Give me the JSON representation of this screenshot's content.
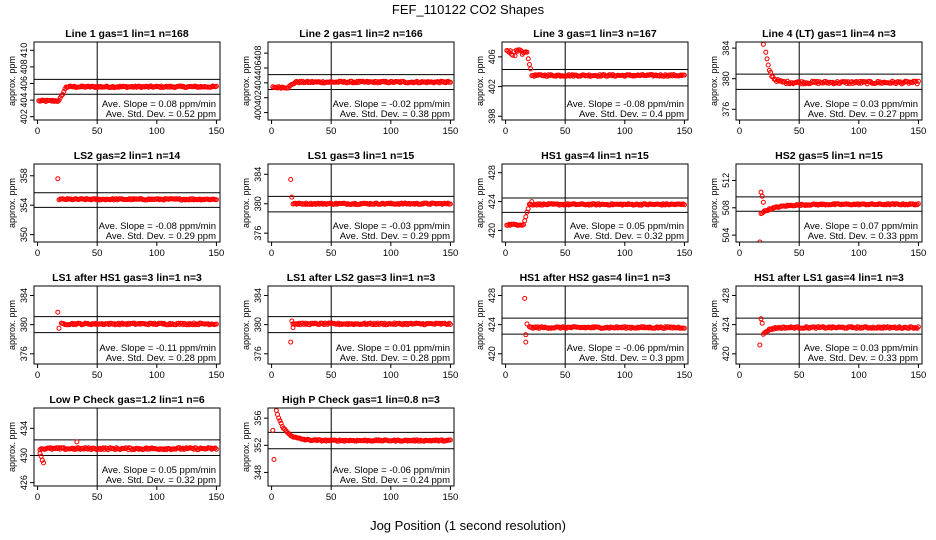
{
  "figure": {
    "title": "FEF_110122  CO2 Shapes",
    "xlabel": "Jog Position (1 second resolution)"
  },
  "colors": {
    "points": "#ff0000",
    "axes": "#000000",
    "background": "#ffffff"
  },
  "chart_data": [
    {
      "type": "scatter",
      "title": "Line 1 gas=1 lin=1 n=168",
      "ylabel": "approx. ppm",
      "xlim": [
        -3,
        153
      ],
      "ylim": [
        401.6,
        411.0
      ],
      "xticks": [
        0,
        50,
        100,
        150
      ],
      "yticks": [
        402,
        404,
        406,
        408,
        410
      ],
      "hlines": [
        404.7,
        406.5
      ],
      "vline": 50,
      "ave_slope": "0.08 ppm/min",
      "ave_std_dev": "0.52 ppm",
      "profile": "step",
      "x_start": 1,
      "step_x": [
        18,
        24
      ],
      "level_before": 403.9,
      "level_after": 405.6,
      "noise": 0.1,
      "outliers": []
    },
    {
      "type": "scatter",
      "title": "Line 2 gas=1 lin=2 n=166",
      "ylabel": "approx. ppm",
      "xlim": [
        -3,
        153
      ],
      "ylim": [
        399.0,
        409.5
      ],
      "xticks": [
        0,
        50,
        100,
        150
      ],
      "yticks": [
        400,
        402,
        404,
        406,
        408
      ],
      "hlines": [
        403.1,
        405.1
      ],
      "vline": 50,
      "ave_slope": "-0.02 ppm/min",
      "ave_std_dev": "0.38 ppm",
      "profile": "step",
      "x_start": 1,
      "step_x": [
        14,
        20
      ],
      "level_before": 403.4,
      "level_after": 404.1,
      "noise": 0.12,
      "outliers": []
    },
    {
      "type": "scatter",
      "title": "Line 3 gas=1 lin=3 n=167",
      "ylabel": "approx. ppm",
      "xlim": [
        -3,
        153
      ],
      "ylim": [
        397.5,
        408.0
      ],
      "xticks": [
        0,
        50,
        100,
        150
      ],
      "yticks": [
        398,
        402,
        406
      ],
      "hlines": [
        402.1,
        404.3
      ],
      "vline": 50,
      "ave_slope": "-0.08 ppm/min",
      "ave_std_dev": "0.4 ppm",
      "profile": "spike",
      "x_start": 1,
      "spike_start": 1,
      "spike_end": 18,
      "spike_level": 406.6,
      "level_after": 403.5,
      "noise": 0.12,
      "outliers": []
    },
    {
      "type": "scatter",
      "title": "Line 4 (LT) gas=1 lin=4 n=3",
      "ylabel": "approx. ppm",
      "xlim": [
        -3,
        153
      ],
      "ylim": [
        374.6,
        384.8
      ],
      "xticks": [
        0,
        50,
        100,
        150
      ],
      "yticks": [
        376,
        380,
        384
      ],
      "hlines": [
        378.6,
        380.6
      ],
      "vline": 50,
      "ave_slope": "0.03 ppm/min",
      "ave_std_dev": "0.27 ppm",
      "profile": "decay",
      "x_start": 22,
      "decay_from": 383.4,
      "decay_tau": 3.5,
      "level_after": 379.5,
      "noise": 0.18,
      "outliers": [
        [
          20,
          384.5
        ]
      ]
    },
    {
      "type": "scatter",
      "title": "LS2 gas=2 lin=1 n=14",
      "ylabel": "approx. ppm",
      "xlim": [
        -3,
        153
      ],
      "ylim": [
        349.0,
        359.6
      ],
      "xticks": [
        0,
        50,
        100,
        150
      ],
      "yticks": [
        350,
        354,
        358
      ],
      "hlines": [
        353.7,
        355.7
      ],
      "vline": 50,
      "ave_slope": "-0.08 ppm/min",
      "ave_std_dev": "0.29 ppm",
      "profile": "flat",
      "x_start": 18,
      "level_after": 354.8,
      "noise": 0.1,
      "outliers": [
        [
          17,
          357.6
        ]
      ]
    },
    {
      "type": "scatter",
      "title": "LS1 gas=3 lin=1 n=15",
      "ylabel": "approx. ppm",
      "xlim": [
        -3,
        153
      ],
      "ylim": [
        374.8,
        385.4
      ],
      "xticks": [
        0,
        50,
        100,
        150
      ],
      "yticks": [
        376,
        380,
        384
      ],
      "hlines": [
        378.9,
        381.0
      ],
      "vline": 50,
      "ave_slope": "-0.03 ppm/min",
      "ave_std_dev": "0.29 ppm",
      "profile": "flat",
      "x_start": 18,
      "level_after": 380.0,
      "noise": 0.1,
      "outliers": [
        [
          16,
          383.3
        ],
        [
          17,
          380.9
        ]
      ]
    },
    {
      "type": "scatter",
      "title": "HS1 gas=4 lin=1 n=15",
      "ylabel": "approx. ppm",
      "xlim": [
        -3,
        153
      ],
      "ylim": [
        418.4,
        429.2
      ],
      "xticks": [
        0,
        50,
        100,
        150
      ],
      "yticks": [
        420,
        424,
        428
      ],
      "hlines": [
        422.5,
        424.5
      ],
      "vline": 50,
      "ave_slope": "0.05 ppm/min",
      "ave_std_dev": "0.32 ppm",
      "profile": "step",
      "x_start": 1,
      "step_x": [
        15,
        20
      ],
      "level_before": 420.8,
      "level_after": 423.6,
      "noise": 0.1,
      "outliers": [
        [
          22,
          424.0
        ]
      ]
    },
    {
      "type": "scatter",
      "title": "HS2 gas=5 lin=1 n=15",
      "ylabel": "approx. ppm",
      "xlim": [
        -3,
        153
      ],
      "ylim": [
        503.0,
        514.4
      ],
      "xticks": [
        0,
        50,
        100,
        150
      ],
      "yticks": [
        504,
        508,
        512
      ],
      "hlines": [
        507.5,
        509.6
      ],
      "vline": 50,
      "ave_slope": "0.07 ppm/min",
      "ave_std_dev": "0.33 ppm",
      "profile": "rise",
      "x_start": 18,
      "rise_from": 507.2,
      "rise_tau": 12,
      "level_after": 508.5,
      "noise": 0.1,
      "outliers": [
        [
          18,
          510.3
        ],
        [
          19,
          509.7
        ],
        [
          20,
          508.8
        ],
        [
          17,
          503.0
        ]
      ]
    },
    {
      "type": "scatter",
      "title": "LS1 after HS1 gas=3 lin=1 n=3",
      "ylabel": "approx. ppm",
      "xlim": [
        -3,
        153
      ],
      "ylim": [
        374.6,
        385.3
      ],
      "xticks": [
        0,
        50,
        100,
        150
      ],
      "yticks": [
        376,
        380,
        384
      ],
      "hlines": [
        378.9,
        381.1
      ],
      "vline": 50,
      "ave_slope": "-0.11 ppm/min",
      "ave_std_dev": "0.28 ppm",
      "profile": "flat",
      "x_start": 20,
      "level_after": 380.1,
      "noise": 0.12,
      "outliers": [
        [
          17,
          381.7
        ],
        [
          18,
          379.5
        ]
      ]
    },
    {
      "type": "scatter",
      "title": "LS1 after LS2 gas=3 lin=1 n=3",
      "ylabel": "approx. ppm",
      "xlim": [
        -3,
        153
      ],
      "ylim": [
        374.6,
        385.3
      ],
      "xticks": [
        0,
        50,
        100,
        150
      ],
      "yticks": [
        376,
        380,
        384
      ],
      "hlines": [
        378.9,
        381.1
      ],
      "vline": 50,
      "ave_slope": "0.01 ppm/min",
      "ave_std_dev": "0.28 ppm",
      "profile": "flat",
      "x_start": 18,
      "level_after": 380.1,
      "noise": 0.12,
      "outliers": [
        [
          16,
          377.6
        ],
        [
          17,
          380.5
        ],
        [
          18,
          379.6
        ]
      ]
    },
    {
      "type": "scatter",
      "title": "HS1 after HS2 gas=4 lin=1 n=3",
      "ylabel": "approx. ppm",
      "xlim": [
        -3,
        153
      ],
      "ylim": [
        418.6,
        429.3
      ],
      "xticks": [
        0,
        50,
        100,
        150
      ],
      "yticks": [
        420,
        424,
        428
      ],
      "hlines": [
        422.7,
        424.9
      ],
      "vline": 50,
      "ave_slope": "-0.06 ppm/min",
      "ave_std_dev": "0.3 ppm",
      "profile": "flat",
      "x_start": 20,
      "level_after": 423.6,
      "noise": 0.12,
      "outliers": [
        [
          16,
          427.6
        ],
        [
          17,
          421.6
        ],
        [
          17,
          422.6
        ],
        [
          18,
          424.1
        ]
      ]
    },
    {
      "type": "scatter",
      "title": "HS1 after LS1 gas=4 lin=1 n=3",
      "ylabel": "approx. ppm",
      "xlim": [
        -3,
        153
      ],
      "ylim": [
        418.6,
        429.3
      ],
      "xticks": [
        0,
        50,
        100,
        150
      ],
      "yticks": [
        420,
        424,
        428
      ],
      "hlines": [
        422.7,
        424.9
      ],
      "vline": 50,
      "ave_slope": "0.03 ppm/min",
      "ave_std_dev": "0.33 ppm",
      "profile": "rise",
      "x_start": 20,
      "rise_from": 422.6,
      "rise_tau": 4,
      "level_after": 423.6,
      "noise": 0.12,
      "outliers": [
        [
          17,
          421.2
        ],
        [
          18,
          424.8
        ],
        [
          19,
          424.2
        ]
      ]
    },
    {
      "type": "scatter",
      "title": "Low P Check gas=1.2 lin=1 n=6",
      "ylabel": "approx. ppm",
      "xlim": [
        -3,
        153
      ],
      "ylim": [
        425.5,
        437.0
      ],
      "xticks": [
        0,
        50,
        100,
        150
      ],
      "yticks": [
        426,
        430,
        434
      ],
      "hlines": [
        430.0,
        432.3
      ],
      "vline": 50,
      "ave_slope": "0.05 ppm/min",
      "ave_std_dev": "0.32 ppm",
      "profile": "flat",
      "x_start": 2,
      "level_after": 431.0,
      "noise": 0.15,
      "outliers": [
        [
          2,
          430.3
        ],
        [
          3,
          429.9
        ],
        [
          4,
          429.3
        ],
        [
          5,
          428.9
        ],
        [
          33,
          432.0
        ]
      ]
    },
    {
      "type": "scatter",
      "title": "High P Check gas=1 lin=0.8 n=3",
      "ylabel": "approx. ppm",
      "xlim": [
        -3,
        153
      ],
      "ylim": [
        346.0,
        357.5
      ],
      "xticks": [
        0,
        50,
        100,
        150
      ],
      "yticks": [
        348,
        352,
        356
      ],
      "hlines": [
        351.5,
        353.9
      ],
      "vline": 50,
      "ave_slope": "-0.06 ppm/min",
      "ave_std_dev": "0.24 ppm",
      "profile": "decay",
      "x_start": 3,
      "decay_from": 357.8,
      "decay_tau": 7,
      "level_after": 352.7,
      "noise": 0.1,
      "outliers": [
        [
          1,
          354.2
        ],
        [
          2,
          349.9
        ]
      ]
    }
  ]
}
